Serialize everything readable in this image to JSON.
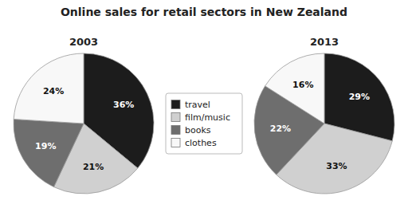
{
  "chart_data": {
    "type": "pie",
    "title": "Online sales for retail sectors in New Zealand",
    "categories": [
      "travel",
      "film/music",
      "books",
      "clothes"
    ],
    "colors": [
      "#1c1c1c",
      "#d0d0d0",
      "#6e6e6e",
      "#f8f8f8"
    ],
    "series": [
      {
        "name": "2003",
        "values": [
          36,
          21,
          19,
          24
        ],
        "value_labels": [
          "36%",
          "21%",
          "19%",
          "24%"
        ]
      },
      {
        "name": "2013",
        "values": [
          29,
          33,
          22,
          16
        ],
        "value_labels": [
          "29%",
          "33%",
          "22%",
          "16%"
        ]
      }
    ],
    "data_labels": true,
    "legend": "center"
  }
}
